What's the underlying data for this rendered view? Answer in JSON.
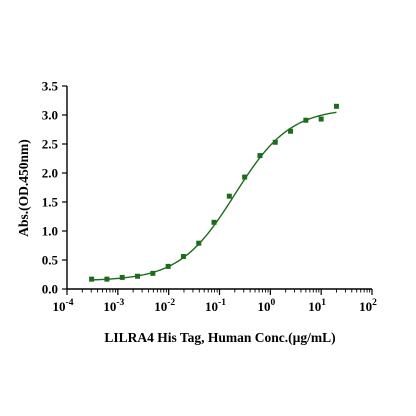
{
  "chart_data": {
    "type": "scatter",
    "xlabel": "LILRA4 His Tag, Human Conc.(µg/mL)",
    "ylabel": "Abs.(OD.450nm)",
    "x_scale": "log",
    "xlim": [
      0.0001,
      100
    ],
    "ylim": [
      0,
      3.5
    ],
    "x_ticks": [
      {
        "value": 0.0001,
        "base": "10",
        "exp": "-4"
      },
      {
        "value": 0.001,
        "base": "10",
        "exp": "-3"
      },
      {
        "value": 0.01,
        "base": "10",
        "exp": "-2"
      },
      {
        "value": 0.1,
        "base": "10",
        "exp": "-1"
      },
      {
        "value": 1,
        "base": "10",
        "exp": "0"
      },
      {
        "value": 10,
        "base": "10",
        "exp": "1"
      },
      {
        "value": 100,
        "base": "10",
        "exp": "2"
      }
    ],
    "y_ticks": [
      "0.0",
      "0.5",
      "1.0",
      "1.5",
      "2.0",
      "2.5",
      "3.0",
      "3.5"
    ],
    "grid": false,
    "legend": "none",
    "color": "#1e6b1e",
    "series": [
      {
        "points": [
          {
            "x": 0.000305,
            "y": 0.17
          },
          {
            "x": 0.00061,
            "y": 0.17
          },
          {
            "x": 0.00122,
            "y": 0.2
          },
          {
            "x": 0.00244,
            "y": 0.22
          },
          {
            "x": 0.00488,
            "y": 0.27
          },
          {
            "x": 0.00977,
            "y": 0.39
          },
          {
            "x": 0.0195,
            "y": 0.56
          },
          {
            "x": 0.0391,
            "y": 0.79
          },
          {
            "x": 0.0781,
            "y": 1.15
          },
          {
            "x": 0.156,
            "y": 1.6
          },
          {
            "x": 0.3125,
            "y": 1.93
          },
          {
            "x": 0.625,
            "y": 2.3
          },
          {
            "x": 1.25,
            "y": 2.53
          },
          {
            "x": 2.5,
            "y": 2.72
          },
          {
            "x": 5,
            "y": 2.91
          },
          {
            "x": 10,
            "y": 2.93
          },
          {
            "x": 20,
            "y": 3.15
          }
        ],
        "fit": {
          "model": "4PL",
          "bottom": 0.14,
          "top": 3.12,
          "ec50": 0.2,
          "hill": 0.8
        }
      }
    ]
  }
}
